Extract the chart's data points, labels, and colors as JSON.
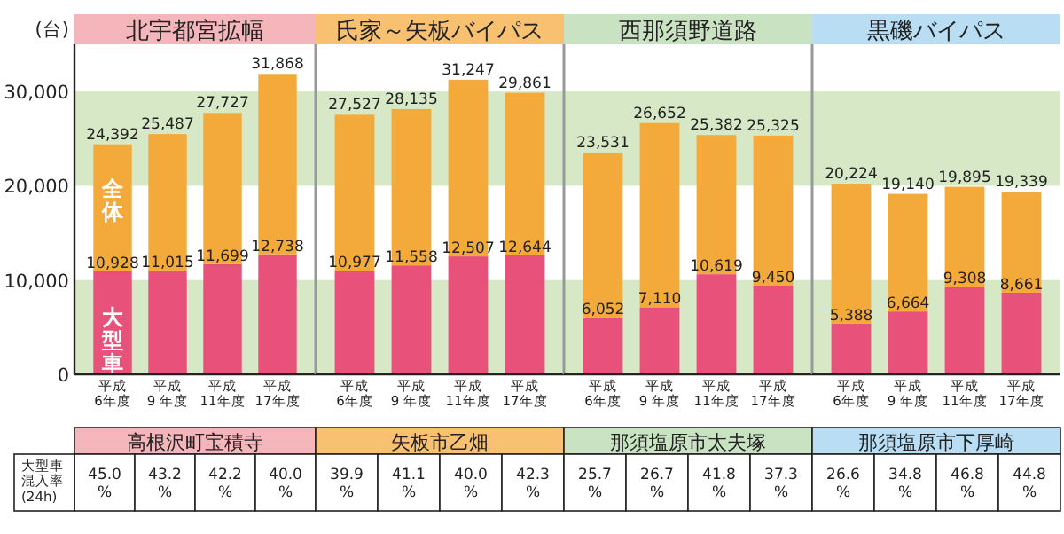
{
  "chart_data": [
    {
      "type": "bar",
      "stacked": true,
      "title": "北宇都宮拡幅",
      "ylabel": "(台)",
      "categories": [
        "平成\n6年度",
        "平成\n9 年度",
        "平成\n11年度",
        "平成\n17年度"
      ],
      "ylim": [
        0,
        35000
      ],
      "yticks": [
        0,
        {
          "value": 10000,
          "label": "10,000"
        },
        {
          "value": 20000,
          "label": "20,000"
        },
        {
          "value": 30000,
          "label": "30,000"
        }
      ],
      "legend": false,
      "bands": [
        {
          "axis": "y",
          "from": 0,
          "to": 10000,
          "color": "#d6e8c6"
        },
        {
          "axis": "y",
          "from": 20000,
          "to": 30000,
          "color": "#d6e8c6"
        }
      ],
      "series": [
        {
          "name": "大型車",
          "color": "#e8527a",
          "values": [
            10928,
            11015,
            11699,
            12738
          ],
          "value_labels": [
            "10,928",
            "11,015",
            "11,699",
            "12,738"
          ]
        },
        {
          "name": "全体",
          "color": "#f4aa3a",
          "values": [
            13464,
            14472,
            16028,
            19130
          ]
        }
      ],
      "totals": [
        "24,392",
        "25,487",
        "27,727",
        "31,868"
      ],
      "annotations": [
        "高根沢町宝積寺",
        "45.0 %",
        "43.2 %",
        "42.2 %",
        "40.0 %",
        "大型車混入率(24h)"
      ]
    },
    {
      "type": "bar",
      "stacked": true,
      "title": "氏家～矢板バイパス",
      "categories": [
        "平成\n6年度",
        "平成\n9 年度",
        "平成\n11年度",
        "平成\n17年度"
      ],
      "ylim": [
        0,
        35000
      ],
      "tick_labels": "x",
      "legend": false,
      "bands": [
        {
          "axis": "y",
          "from": 0,
          "to": 10000,
          "color": "#d6e8c6"
        },
        {
          "axis": "y",
          "from": 20000,
          "to": 30000,
          "color": "#d6e8c6"
        }
      ],
      "series": [
        {
          "color": "#e8527a",
          "values": [
            10977,
            11558,
            12507,
            12644
          ],
          "value_labels": [
            "10,977",
            "11,558",
            "12,507",
            "12,644"
          ]
        },
        {
          "color": "#f4aa3a",
          "values": [
            16550,
            16577,
            18740,
            17217
          ]
        }
      ],
      "totals": [
        "27,527",
        "28,135",
        "31,247",
        "29,861"
      ],
      "annotations": [
        "矢板市乙畑",
        "39.9 %",
        "41.1 %",
        "40.0 %",
        "42.3 %"
      ]
    },
    {
      "type": "bar",
      "stacked": true,
      "title": "西那須野道路",
      "categories": [
        "平成\n6年度",
        "平成\n9 年度",
        "平成\n11年度",
        "平成\n17年度"
      ],
      "ylim": [
        0,
        35000
      ],
      "tick_labels": "x",
      "legend": false,
      "bands": [
        {
          "axis": "y",
          "from": 0,
          "to": 10000,
          "color": "#d6e8c6"
        },
        {
          "axis": "y",
          "from": 20000,
          "to": 30000,
          "color": "#d6e8c6"
        }
      ],
      "series": [
        {
          "color": "#e8527a",
          "values": [
            6052,
            7110,
            10619,
            9450
          ],
          "value_labels": [
            "6,052",
            "7,110",
            "10,619",
            "9,450"
          ]
        },
        {
          "color": "#f4aa3a",
          "values": [
            17479,
            19542,
            14763,
            15875
          ]
        }
      ],
      "totals": [
        "23,531",
        "26,652",
        "25,382",
        "25,325"
      ],
      "annotations": [
        "那須塩原市太夫塚",
        "25.7 %",
        "26.7 %",
        "41.8 %",
        "37.3 %"
      ]
    },
    {
      "type": "bar",
      "stacked": true,
      "title": "黒磯バイパス",
      "categories": [
        "平成\n6年度",
        "平成\n9 年度",
        "平成\n11年度",
        "平成\n17年度"
      ],
      "ylim": [
        0,
        35000
      ],
      "tick_labels": "x",
      "legend": false,
      "bands": [
        {
          "axis": "y",
          "from": 0,
          "to": 10000,
          "color": "#d6e8c6"
        },
        {
          "axis": "y",
          "from": 20000,
          "to": 30000,
          "color": "#d6e8c6"
        }
      ],
      "series": [
        {
          "color": "#e8527a",
          "values": [
            5388,
            6664,
            9308,
            8661
          ],
          "value_labels": [
            "5,388",
            "6,664",
            "9,308",
            "8,661"
          ]
        },
        {
          "color": "#f4aa3a",
          "values": [
            14836,
            12476,
            10587,
            10678
          ]
        }
      ],
      "totals": [
        "20,224",
        "19,140",
        "19,895",
        "19,339"
      ],
      "annotations": [
        "那須塩原市下厚崎",
        "26.6 %",
        "34.8 %",
        "46.8 %",
        "44.8 %"
      ]
    }
  ]
}
